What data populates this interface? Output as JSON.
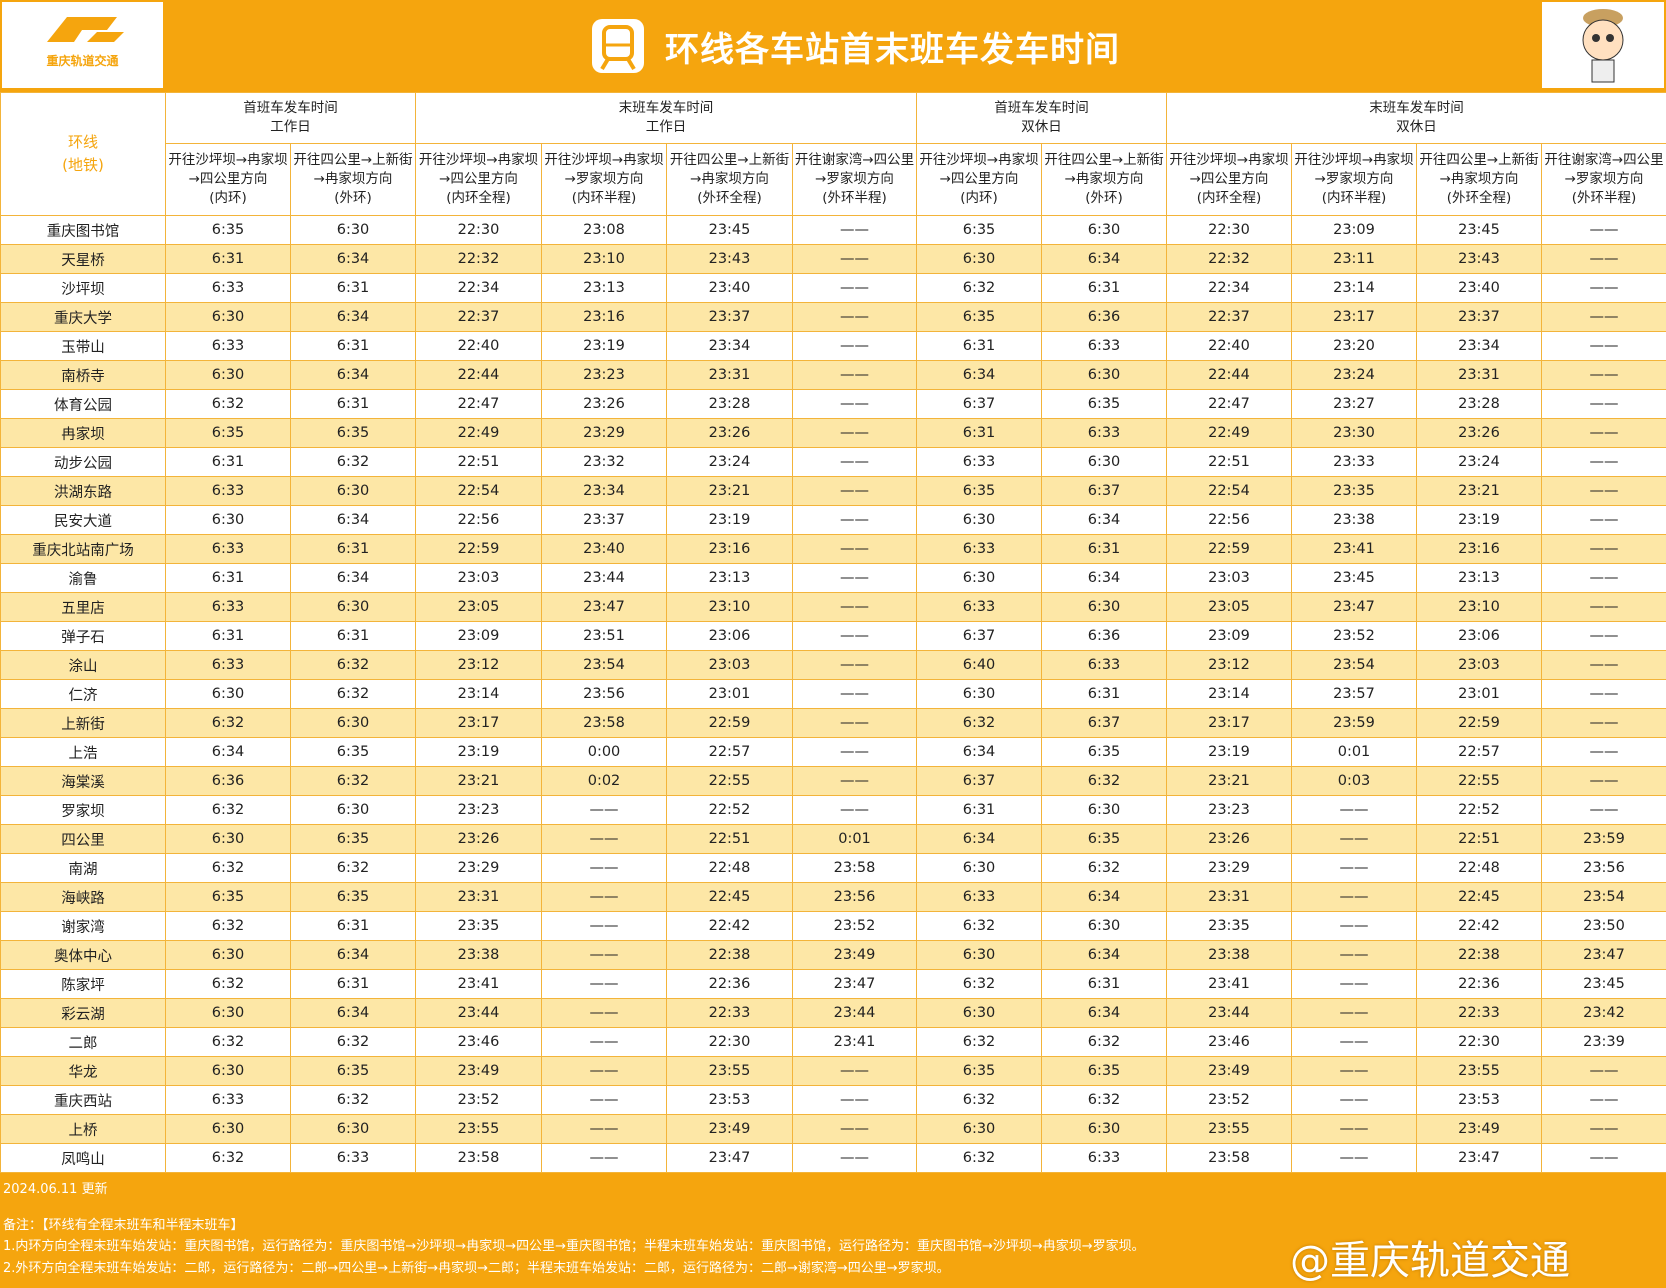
{
  "header": {
    "logo_text": "重庆轨道交通",
    "title": "环线各车站首末班车发车时间"
  },
  "table": {
    "corner": [
      "环线",
      "(地铁)"
    ],
    "groups": [
      [
        "首班车发车时间",
        "工作日"
      ],
      [
        "末班车发车时间",
        "工作日"
      ],
      [
        "首班车发车时间",
        "双休日"
      ],
      [
        "末班车发车时间",
        "双休日"
      ]
    ],
    "columns": [
      [
        "开往沙坪坝→冉家坝→四公里方向",
        "(内环)"
      ],
      [
        "开往四公里→上新街→冉家坝方向",
        "(外环)"
      ],
      [
        "开往沙坪坝→冉家坝→四公里方向",
        "(内环全程)"
      ],
      [
        "开往沙坪坝→冉家坝→罗家坝方向",
        "(内环半程)"
      ],
      [
        "开往四公里→上新街→冉家坝方向",
        "(外环全程)"
      ],
      [
        "开往谢家湾→四公里→罗家坝方向",
        "(外环半程)"
      ],
      [
        "开往沙坪坝→冉家坝→四公里方向",
        "(内环)"
      ],
      [
        "开往四公里→上新街→冉家坝方向",
        "(外环)"
      ],
      [
        "开往沙坪坝→冉家坝→四公里方向",
        "(内环全程)"
      ],
      [
        "开往沙坪坝→冉家坝→罗家坝方向",
        "(内环半程)"
      ],
      [
        "开往四公里→上新街→冉家坝方向",
        "(外环全程)"
      ],
      [
        "开往谢家湾→四公里→罗家坝方向",
        "(外环半程)"
      ]
    ],
    "rows": [
      [
        "重庆图书馆",
        "6:35",
        "6:30",
        "22:30",
        "23:08",
        "23:45",
        "——",
        "6:35",
        "6:30",
        "22:30",
        "23:09",
        "23:45",
        "——"
      ],
      [
        "天星桥",
        "6:31",
        "6:34",
        "22:32",
        "23:10",
        "23:43",
        "——",
        "6:30",
        "6:34",
        "22:32",
        "23:11",
        "23:43",
        "——"
      ],
      [
        "沙坪坝",
        "6:33",
        "6:31",
        "22:34",
        "23:13",
        "23:40",
        "——",
        "6:32",
        "6:31",
        "22:34",
        "23:14",
        "23:40",
        "——"
      ],
      [
        "重庆大学",
        "6:30",
        "6:34",
        "22:37",
        "23:16",
        "23:37",
        "——",
        "6:35",
        "6:36",
        "22:37",
        "23:17",
        "23:37",
        "——"
      ],
      [
        "玉带山",
        "6:33",
        "6:31",
        "22:40",
        "23:19",
        "23:34",
        "——",
        "6:31",
        "6:33",
        "22:40",
        "23:20",
        "23:34",
        "——"
      ],
      [
        "南桥寺",
        "6:30",
        "6:34",
        "22:44",
        "23:23",
        "23:31",
        "——",
        "6:34",
        "6:30",
        "22:44",
        "23:24",
        "23:31",
        "——"
      ],
      [
        "体育公园",
        "6:32",
        "6:31",
        "22:47",
        "23:26",
        "23:28",
        "——",
        "6:37",
        "6:35",
        "22:47",
        "23:27",
        "23:28",
        "——"
      ],
      [
        "冉家坝",
        "6:35",
        "6:35",
        "22:49",
        "23:29",
        "23:26",
        "——",
        "6:31",
        "6:33",
        "22:49",
        "23:30",
        "23:26",
        "——"
      ],
      [
        "动步公园",
        "6:31",
        "6:32",
        "22:51",
        "23:32",
        "23:24",
        "——",
        "6:33",
        "6:30",
        "22:51",
        "23:33",
        "23:24",
        "——"
      ],
      [
        "洪湖东路",
        "6:33",
        "6:30",
        "22:54",
        "23:34",
        "23:21",
        "——",
        "6:35",
        "6:37",
        "22:54",
        "23:35",
        "23:21",
        "——"
      ],
      [
        "民安大道",
        "6:30",
        "6:34",
        "22:56",
        "23:37",
        "23:19",
        "——",
        "6:30",
        "6:34",
        "22:56",
        "23:38",
        "23:19",
        "——"
      ],
      [
        "重庆北站南广场",
        "6:33",
        "6:31",
        "22:59",
        "23:40",
        "23:16",
        "——",
        "6:33",
        "6:31",
        "22:59",
        "23:41",
        "23:16",
        "——"
      ],
      [
        "渝鲁",
        "6:31",
        "6:34",
        "23:03",
        "23:44",
        "23:13",
        "——",
        "6:30",
        "6:34",
        "23:03",
        "23:45",
        "23:13",
        "——"
      ],
      [
        "五里店",
        "6:33",
        "6:30",
        "23:05",
        "23:47",
        "23:10",
        "——",
        "6:33",
        "6:30",
        "23:05",
        "23:47",
        "23:10",
        "——"
      ],
      [
        "弹子石",
        "6:31",
        "6:31",
        "23:09",
        "23:51",
        "23:06",
        "——",
        "6:37",
        "6:36",
        "23:09",
        "23:52",
        "23:06",
        "——"
      ],
      [
        "涂山",
        "6:33",
        "6:32",
        "23:12",
        "23:54",
        "23:03",
        "——",
        "6:40",
        "6:33",
        "23:12",
        "23:54",
        "23:03",
        "——"
      ],
      [
        "仁济",
        "6:30",
        "6:32",
        "23:14",
        "23:56",
        "23:01",
        "——",
        "6:30",
        "6:31",
        "23:14",
        "23:57",
        "23:01",
        "——"
      ],
      [
        "上新街",
        "6:32",
        "6:30",
        "23:17",
        "23:58",
        "22:59",
        "——",
        "6:32",
        "6:37",
        "23:17",
        "23:59",
        "22:59",
        "——"
      ],
      [
        "上浩",
        "6:34",
        "6:35",
        "23:19",
        "0:00",
        "22:57",
        "——",
        "6:34",
        "6:35",
        "23:19",
        "0:01",
        "22:57",
        "——"
      ],
      [
        "海棠溪",
        "6:36",
        "6:32",
        "23:21",
        "0:02",
        "22:55",
        "——",
        "6:37",
        "6:32",
        "23:21",
        "0:03",
        "22:55",
        "——"
      ],
      [
        "罗家坝",
        "6:32",
        "6:30",
        "23:23",
        "——",
        "22:52",
        "——",
        "6:31",
        "6:30",
        "23:23",
        "——",
        "22:52",
        "——"
      ],
      [
        "四公里",
        "6:30",
        "6:35",
        "23:26",
        "——",
        "22:51",
        "0:01",
        "6:34",
        "6:35",
        "23:26",
        "——",
        "22:51",
        "23:59"
      ],
      [
        "南湖",
        "6:32",
        "6:32",
        "23:29",
        "——",
        "22:48",
        "23:58",
        "6:30",
        "6:32",
        "23:29",
        "——",
        "22:48",
        "23:56"
      ],
      [
        "海峡路",
        "6:35",
        "6:35",
        "23:31",
        "——",
        "22:45",
        "23:56",
        "6:33",
        "6:34",
        "23:31",
        "——",
        "22:45",
        "23:54"
      ],
      [
        "谢家湾",
        "6:32",
        "6:31",
        "23:35",
        "——",
        "22:42",
        "23:52",
        "6:32",
        "6:30",
        "23:35",
        "——",
        "22:42",
        "23:50"
      ],
      [
        "奥体中心",
        "6:30",
        "6:34",
        "23:38",
        "——",
        "22:38",
        "23:49",
        "6:30",
        "6:34",
        "23:38",
        "——",
        "22:38",
        "23:47"
      ],
      [
        "陈家坪",
        "6:32",
        "6:31",
        "23:41",
        "——",
        "22:36",
        "23:47",
        "6:32",
        "6:31",
        "23:41",
        "——",
        "22:36",
        "23:45"
      ],
      [
        "彩云湖",
        "6:30",
        "6:34",
        "23:44",
        "——",
        "22:33",
        "23:44",
        "6:30",
        "6:34",
        "23:44",
        "——",
        "22:33",
        "23:42"
      ],
      [
        "二郎",
        "6:32",
        "6:32",
        "23:46",
        "——",
        "22:30",
        "23:41",
        "6:32",
        "6:32",
        "23:46",
        "——",
        "22:30",
        "23:39"
      ],
      [
        "华龙",
        "6:30",
        "6:35",
        "23:49",
        "——",
        "23:55",
        "——",
        "6:35",
        "6:35",
        "23:49",
        "——",
        "23:55",
        "——"
      ],
      [
        "重庆西站",
        "6:33",
        "6:32",
        "23:52",
        "——",
        "23:53",
        "——",
        "6:32",
        "6:32",
        "23:52",
        "——",
        "23:53",
        "——"
      ],
      [
        "上桥",
        "6:30",
        "6:30",
        "23:55",
        "——",
        "23:49",
        "——",
        "6:30",
        "6:30",
        "23:55",
        "——",
        "23:49",
        "——"
      ],
      [
        "凤鸣山",
        "6:32",
        "6:33",
        "23:58",
        "——",
        "23:47",
        "——",
        "6:32",
        "6:33",
        "23:58",
        "——",
        "23:47",
        "——"
      ]
    ]
  },
  "footer": {
    "updated": "2024.06.11 更新",
    "note_title": "备注：【环线有全程末班车和半程末班车】",
    "notes": [
      "1.内环方向全程末班车始发站：重庆图书馆，运行路径为：重庆图书馆→沙坪坝→冉家坝→四公里→重庆图书馆；半程末班车始发站：重庆图书馆，运行路径为：重庆图书馆→沙坪坝→冉家坝→罗家坝。",
      "2.外环方向全程末班车始发站：二郎，运行路径为：二郎→四公里→上新街→冉家坝→二郎；半程末班车始发站：二郎，运行路径为：二郎→谢家湾→四公里→罗家坝。"
    ],
    "watermark": "@重庆轨道交通"
  }
}
